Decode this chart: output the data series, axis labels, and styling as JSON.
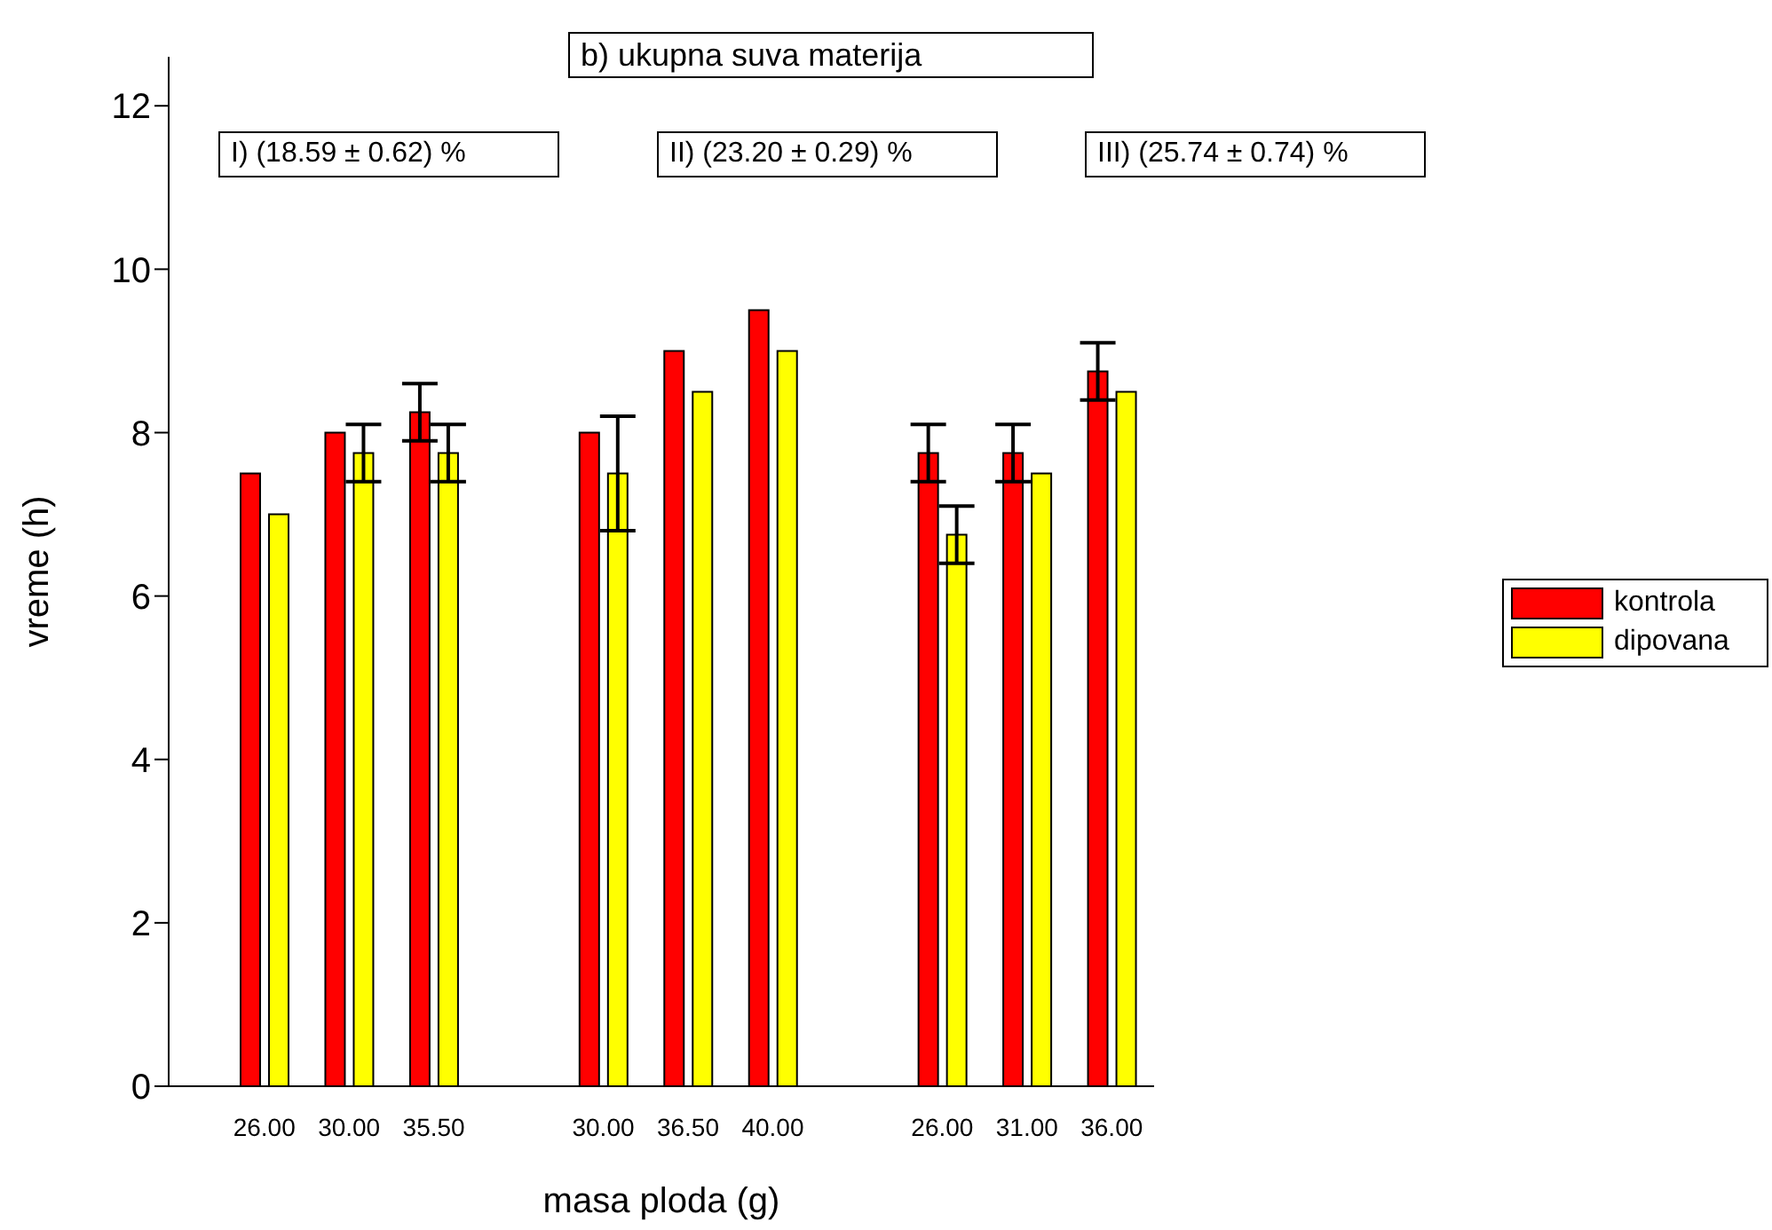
{
  "chart_data": {
    "type": "bar",
    "title": "b) ukupna suva materija",
    "xlabel": "masa ploda (g)",
    "ylabel": "vreme (h)",
    "categories": [
      "26.00",
      "30.00",
      "35.50",
      null,
      "30.00",
      "36.50",
      "40.00",
      null,
      "26.00",
      "31.00",
      "36.00"
    ],
    "series": [
      {
        "name": "kontrola",
        "color": "#ff0000",
        "values": [
          7.5,
          8.0,
          8.25,
          null,
          8.0,
          9.0,
          9.5,
          null,
          7.75,
          7.75,
          8.75
        ],
        "errors": [
          null,
          null,
          0.35,
          null,
          null,
          null,
          null,
          null,
          0.35,
          0.35,
          0.35
        ]
      },
      {
        "name": "dipovana",
        "color": "#ffff00",
        "values": [
          7.0,
          7.75,
          7.75,
          null,
          7.5,
          8.5,
          9.0,
          null,
          6.75,
          7.5,
          8.5
        ],
        "errors": [
          null,
          0.35,
          0.35,
          null,
          0.7,
          null,
          null,
          null,
          0.35,
          null,
          null
        ]
      }
    ],
    "annotations": [
      "I) (18.59 ± 0.62) %",
      "II) (23.20 ± 0.29) %",
      "III) (25.74 ± 0.74) %"
    ],
    "ylim": [
      0,
      12.6
    ],
    "yticks": [
      0,
      2,
      4,
      6,
      8,
      10,
      12
    ],
    "grid": false,
    "legend": "right"
  }
}
